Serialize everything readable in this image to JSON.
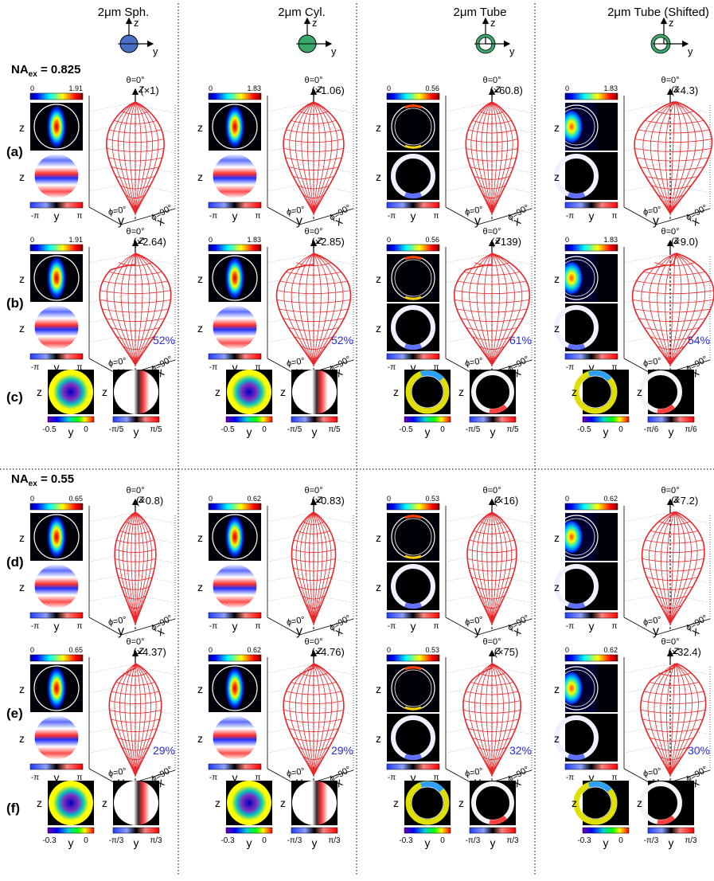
{
  "columns": [
    {
      "title": "2μm Sph.",
      "icon": "sphere-icon",
      "fill": "#4a6fc7"
    },
    {
      "title": "2μm Cyl.",
      "icon": "cylinder-icon",
      "fill": "#3aa86a"
    },
    {
      "title": "2μm Tube",
      "icon": "tube-icon",
      "fill": "#3aa86a"
    },
    {
      "title": "2μm Tube (Shifted)",
      "icon": "tube-icon",
      "fill": "#3aa86a"
    }
  ],
  "axes": {
    "z": "z",
    "y": "y",
    "x": "x",
    "theta0": "θ=0°",
    "phi0": "ϕ=0°",
    "phi90": "ϕ=90°",
    "neg_pi": "-π",
    "pi": "π"
  },
  "sections": [
    {
      "label": "NA",
      "sub": "ex",
      "value": " = 0.825"
    },
    {
      "label": "NA",
      "sub": "ex",
      "value": " = 0.55"
    }
  ],
  "rows": [
    {
      "id": "(a)",
      "type": "pattern",
      "scales": [
        "0",
        "0",
        "0",
        "0"
      ],
      "maxes": [
        "1.91",
        "1.83",
        "0.56",
        "1.83"
      ],
      "factors": [
        "(×1)",
        "(×1.06)",
        "(×60.8)",
        "(×4.3)"
      ],
      "percents": [
        "",
        "",
        "",
        ""
      ]
    },
    {
      "id": "(b)",
      "type": "pattern",
      "scales": [
        "0",
        "0",
        "0",
        "0"
      ],
      "maxes": [
        "1.91",
        "1.83",
        "0.56",
        "1.83"
      ],
      "factors": [
        "(×2.64)",
        "(×2.85)",
        "(×139)",
        "(×9.0)"
      ],
      "percents": [
        "52%",
        "52%",
        "61%",
        "54%"
      ]
    },
    {
      "id": "(c)",
      "type": "diff",
      "amp_ticks": [
        [
          "-0.5",
          "0"
        ],
        [
          "-0.5",
          "0"
        ],
        [
          "-0.5",
          "0"
        ],
        [
          "-0.5",
          "0"
        ]
      ],
      "phase_ticks": [
        [
          "-π/5",
          "π/5"
        ],
        [
          "-π/5",
          "π/5"
        ],
        [
          "-π/5",
          "π/5"
        ],
        [
          "-π/6",
          "π/6"
        ]
      ]
    },
    {
      "id": "(d)",
      "type": "pattern",
      "scales": [
        "0",
        "0",
        "0",
        "0"
      ],
      "maxes": [
        "0.65",
        "0.62",
        "0.53",
        "0.62"
      ],
      "factors": [
        "(×0.8)",
        "(×0.83)",
        "(×16)",
        "(×7.2)"
      ],
      "percents": [
        "",
        "",
        "",
        ""
      ]
    },
    {
      "id": "(e)",
      "type": "pattern",
      "scales": [
        "0",
        "0",
        "0",
        "0"
      ],
      "maxes": [
        "0.65",
        "0.62",
        "0.53",
        "0.62"
      ],
      "factors": [
        "(×4.37)",
        "(×4.76)",
        "(×75)",
        "(×32.4)"
      ],
      "percents": [
        "29%",
        "29%",
        "32%",
        "30%"
      ]
    },
    {
      "id": "(f)",
      "type": "diff",
      "amp_ticks": [
        [
          "-0.3",
          "0"
        ],
        [
          "-0.3",
          "0"
        ],
        [
          "-0.3",
          "0"
        ],
        [
          "-0.3",
          "0"
        ]
      ],
      "phase_ticks": [
        [
          "-π/3",
          "π/3"
        ],
        [
          "-π/3",
          "π/3"
        ],
        [
          "-π/3",
          "π/3"
        ],
        [
          "-π/3",
          "π/3"
        ]
      ]
    }
  ],
  "colors": {
    "mesh": "#e8262a",
    "percent": "#2a2adc",
    "frame": "#000000"
  }
}
